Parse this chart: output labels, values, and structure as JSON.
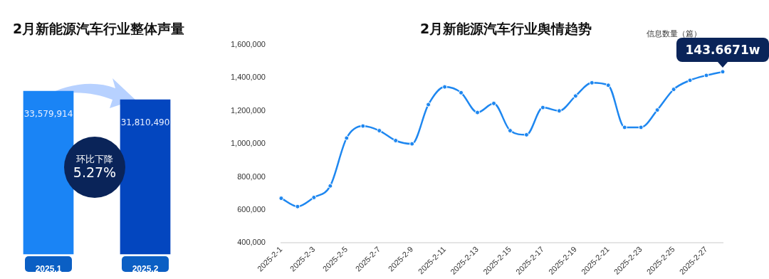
{
  "chart_data": [
    {
      "type": "bar",
      "title": "2月新能源汽车行业整体声量",
      "categories": [
        "2025.1",
        "2025.2"
      ],
      "values": [
        33579914,
        31810490
      ],
      "colors": [
        "#1a84f5",
        "#0346bf"
      ],
      "value_labels": [
        "33,579,914",
        "31,810,490"
      ],
      "tick_labels": "x",
      "legend": false,
      "grid": false,
      "annotations": [
        "环比下降",
        "5.27%"
      ]
    },
    {
      "type": "line",
      "title": "2月新能源汽车行业舆情趋势",
      "categories": [
        "2025-2-1",
        null,
        "2025-2-3",
        null,
        "2025-2-5",
        null,
        "2025-2-7",
        null,
        "2025-2-9",
        null,
        "2025-2-11",
        null,
        "2025-2-13",
        null,
        "2025-2-15",
        null,
        "2025-2-17",
        null,
        "2025-2-19",
        null,
        "2025-2-21",
        null,
        "2025-2-23",
        null,
        "2025-2-25",
        null,
        "2025-2-27",
        null
      ],
      "series": [
        {
          "name": "信息数量（篇）",
          "color": "#1e87f0",
          "values": [
            670000,
            620000,
            675000,
            745000,
            1035000,
            1108000,
            1080000,
            1020000,
            1000000,
            1238000,
            1345000,
            1310000,
            1190000,
            1245000,
            1080000,
            1055000,
            1220000,
            1200000,
            1290000,
            1370000,
            1355000,
            1100000,
            1100000,
            1205000,
            1330000,
            1385000,
            1415000,
            1436671
          ]
        }
      ],
      "ylim": [
        400000,
        1600000
      ],
      "yticks": [
        {
          "value": 400000,
          "label": "400,000"
        },
        {
          "value": 600000,
          "label": "600,000"
        },
        {
          "value": 800000,
          "label": "800,000"
        },
        {
          "value": 1000000,
          "label": "1,000,000"
        },
        {
          "value": 1200000,
          "label": "1,200,000"
        },
        {
          "value": 1400000,
          "label": "1,400,000"
        },
        {
          "value": 1600000,
          "label": "1,600,000"
        }
      ],
      "grid": false,
      "legend": "top right",
      "marker": "circle",
      "line_style": "solid",
      "annotations": [
        {
          "text": "143.6671w",
          "y": 1436671
        }
      ]
    }
  ]
}
